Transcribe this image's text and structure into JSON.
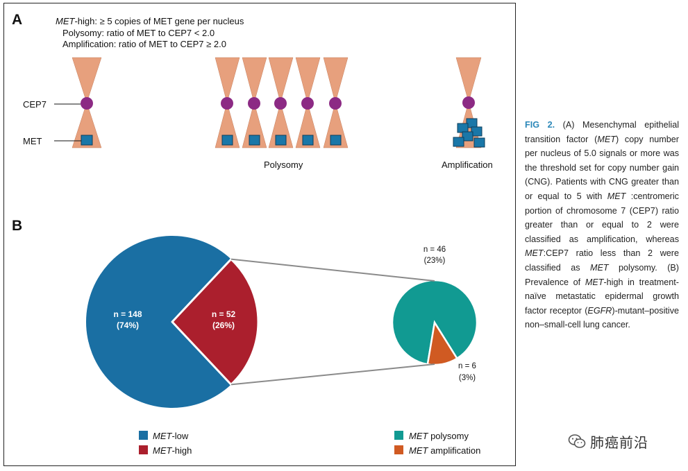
{
  "panel_a": {
    "letter": "A",
    "definition_line1_italic": "MET",
    "definition_line1_rest": "-high: ≥ 5 copies of MET gene per nucleus",
    "definition_line2": "Polysomy: ratio of MET to CEP7 < 2.0",
    "definition_line3": "Amplification: ratio of MET to CEP7 ≥ 2.0",
    "label_cep7": "CEP7",
    "label_met": "MET",
    "caption_polysomy": "Polysomy",
    "caption_amplification": "Amplification"
  },
  "panel_b": {
    "letter": "B",
    "large_pie_labels": {
      "low_n": "n = 148",
      "low_pct": "(74%)",
      "high_n": "n = 52",
      "high_pct": "(26%)"
    },
    "small_pie_labels": {
      "poly_n": "n = 46",
      "poly_pct": "(23%)",
      "amp_n": "n = 6",
      "amp_pct": "(3%)"
    },
    "legend": [
      {
        "italic": "MET",
        "rest": "-low",
        "color": "#1a6fa3"
      },
      {
        "italic": "MET",
        "rest": "-high",
        "color": "#ab1f2d"
      },
      {
        "italic": "MET",
        "rest": " polysomy",
        "color": "#119a92"
      },
      {
        "italic": "MET",
        "rest": " amplification",
        "color": "#d05a22"
      }
    ]
  },
  "chart_data": [
    {
      "type": "pie",
      "categories": [
        "MET-low",
        "MET-high"
      ],
      "values": [
        148,
        52
      ],
      "percent": [
        74,
        26
      ],
      "colors": [
        "#1a6fa3",
        "#ab1f2d"
      ]
    },
    {
      "type": "pie",
      "categories": [
        "MET polysomy",
        "MET amplification"
      ],
      "values": [
        46,
        6
      ],
      "percent": [
        23,
        3
      ],
      "colors": [
        "#119a92",
        "#d05a22"
      ]
    }
  ],
  "colors": {
    "chromosome": "#e7a07d",
    "centromere": "#8c2a84",
    "gene": "#1a77a8",
    "caption_accent": "#2b87b8"
  },
  "caption": {
    "fig_label": "FIG 2.",
    "segments": [
      {
        "t": " (A) Mesenchymal epithelial transition factor (",
        "i": false
      },
      {
        "t": "MET",
        "i": true
      },
      {
        "t": ") copy number per nucleus of 5.0 signals or more was the threshold set for copy number gain (CNG). Patients with CNG greater than or equal to 5 with ",
        "i": false
      },
      {
        "t": "MET",
        "i": true
      },
      {
        "t": " :centromeric portion of chromosome 7 (CEP7) ratio greater than or equal to 2 were classified as amplification, whereas ",
        "i": false
      },
      {
        "t": "MET",
        "i": true
      },
      {
        "t": ":CEP7 ratio less than 2 were classified as ",
        "i": false
      },
      {
        "t": "MET",
        "i": true
      },
      {
        "t": " polysomy. (B) Prevalence of ",
        "i": false
      },
      {
        "t": "MET",
        "i": true
      },
      {
        "t": "-high in treatment-naïve metastatic epidermal growth factor receptor (",
        "i": false
      },
      {
        "t": "EGFR",
        "i": true
      },
      {
        "t": ")-mutant–positive non–small-cell lung cancer.",
        "i": false
      }
    ]
  },
  "watermark": {
    "text": "肺癌前沿",
    "icon": "wechat-icon"
  }
}
